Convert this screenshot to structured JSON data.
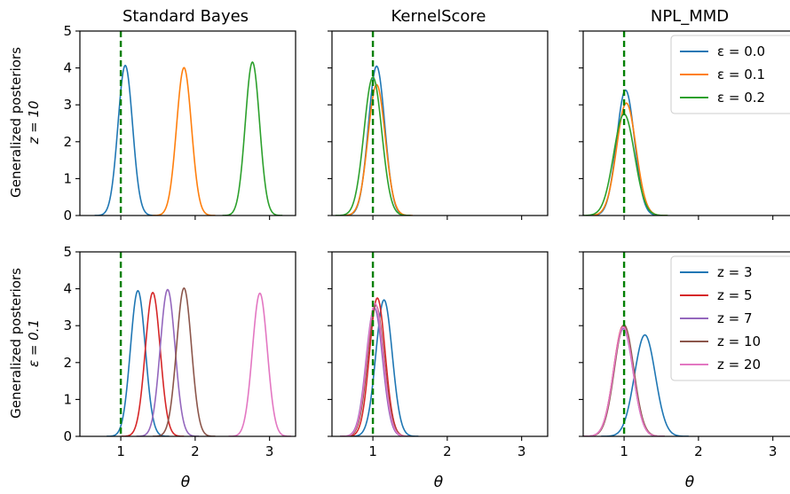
{
  "chart_data": {
    "type": "line",
    "grid": false,
    "xlim": [
      0.45,
      3.35
    ],
    "ylim": [
      0,
      5
    ],
    "x_ticks": [
      1,
      2,
      3
    ],
    "y_ticks": [
      0,
      1,
      2,
      3,
      4,
      5
    ],
    "xlabel": "θ",
    "reference_line_x": 1,
    "reference_line_color": "#008000",
    "col_titles": [
      "Standard Bayes",
      "KernelScore",
      "NPL_MMD"
    ],
    "row_labels": [
      [
        "Generalized posteriors",
        "z = 10"
      ],
      [
        "Generalized posteriors",
        "ε = 0.1"
      ]
    ],
    "rows": [
      {
        "legend_location": "upper right",
        "legend_panel": 2,
        "series_meta": [
          {
            "name": "ε = 0.0",
            "color": "#1f77b4"
          },
          {
            "name": "ε = 0.1",
            "color": "#ff7f0e"
          },
          {
            "name": "ε = 0.2",
            "color": "#2ca02c"
          }
        ],
        "panels": [
          {
            "series": [
              {
                "mean": 1.06,
                "sd": 0.098,
                "peak": 4.07
              },
              {
                "mean": 1.85,
                "sd": 0.1,
                "peak": 4.01
              },
              {
                "mean": 2.77,
                "sd": 0.096,
                "peak": 4.16
              }
            ]
          },
          {
            "series": [
              {
                "mean": 1.05,
                "sd": 0.11,
                "peak": 4.05
              },
              {
                "mean": 1.05,
                "sd": 0.115,
                "peak": 3.55
              },
              {
                "mean": 1.0,
                "sd": 0.12,
                "peak": 3.75
              }
            ]
          },
          {
            "series": [
              {
                "mean": 1.02,
                "sd": 0.12,
                "peak": 3.4
              },
              {
                "mean": 1.03,
                "sd": 0.13,
                "peak": 3.05
              },
              {
                "mean": 1.0,
                "sd": 0.14,
                "peak": 2.75
              }
            ]
          }
        ]
      },
      {
        "legend_location": "upper right",
        "legend_panel": 2,
        "series_meta": [
          {
            "name": "z = 3",
            "color": "#1f77b4"
          },
          {
            "name": "z = 5",
            "color": "#d62728"
          },
          {
            "name": "z = 7",
            "color": "#9467bd"
          },
          {
            "name": "z = 10",
            "color": "#8c564b"
          },
          {
            "name": "z = 20",
            "color": "#e377c2"
          }
        ],
        "panels": [
          {
            "series": [
              {
                "mean": 1.23,
                "sd": 0.1,
                "peak": 3.95
              },
              {
                "mean": 1.43,
                "sd": 0.1,
                "peak": 3.9
              },
              {
                "mean": 1.63,
                "sd": 0.1,
                "peak": 3.98
              },
              {
                "mean": 1.85,
                "sd": 0.1,
                "peak": 4.02
              },
              {
                "mean": 2.87,
                "sd": 0.1,
                "peak": 3.88
              }
            ]
          },
          {
            "series": [
              {
                "mean": 1.15,
                "sd": 0.11,
                "peak": 3.7
              },
              {
                "mean": 1.06,
                "sd": 0.105,
                "peak": 3.75
              },
              {
                "mean": 1.02,
                "sd": 0.11,
                "peak": 3.48
              },
              {
                "mean": 1.04,
                "sd": 0.11,
                "peak": 3.55
              },
              {
                "mean": 1.03,
                "sd": 0.11,
                "peak": 3.6
              }
            ]
          },
          {
            "series": [
              {
                "mean": 1.28,
                "sd": 0.14,
                "peak": 2.75
              },
              {
                "mean": 0.99,
                "sd": 0.13,
                "peak": 3.0
              },
              {
                "mean": 0.99,
                "sd": 0.13,
                "peak": 2.92
              },
              {
                "mean": 1.0,
                "sd": 0.13,
                "peak": 3.02
              },
              {
                "mean": 0.99,
                "sd": 0.13,
                "peak": 2.97
              }
            ]
          }
        ]
      }
    ]
  }
}
